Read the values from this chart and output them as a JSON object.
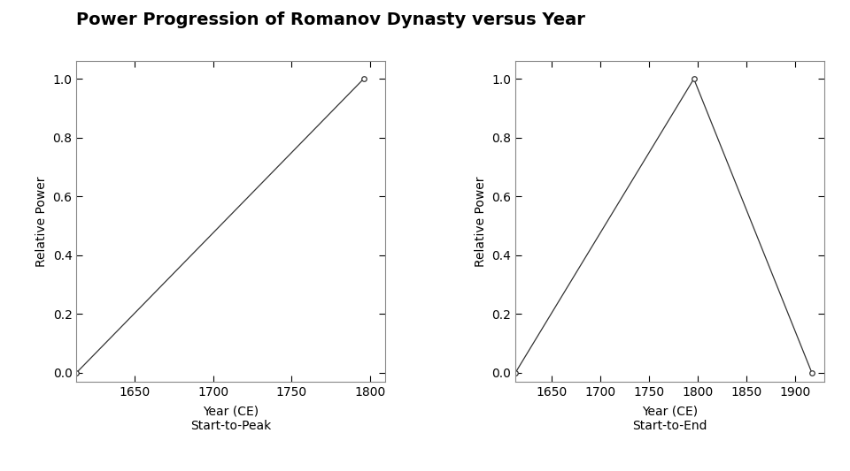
{
  "title": "Power Progression of Romanov Dynasty versus Year",
  "title_fontsize": 14,
  "title_fontweight": "bold",
  "left_plot": {
    "x": [
      1613,
      1796
    ],
    "y": [
      0.0,
      1.0
    ],
    "xlabel": "Year (CE)",
    "subtitle": "Start-to-Peak",
    "ylabel": "Relative Power",
    "xlim": [
      1613,
      1810
    ],
    "ylim": [
      -0.03,
      1.06
    ],
    "xticks": [
      1650,
      1700,
      1750,
      1800
    ],
    "yticks": [
      0.0,
      0.2,
      0.4,
      0.6,
      0.8,
      1.0
    ]
  },
  "right_plot": {
    "x": [
      1613,
      1796,
      1917
    ],
    "y": [
      0.0,
      1.0,
      0.0
    ],
    "xlabel": "Year (CE)",
    "subtitle": "Start-to-End",
    "ylabel": "Relative Power",
    "xlim": [
      1613,
      1930
    ],
    "ylim": [
      -0.03,
      1.06
    ],
    "xticks": [
      1650,
      1700,
      1750,
      1800,
      1850,
      1900
    ],
    "yticks": [
      0.0,
      0.2,
      0.4,
      0.6,
      0.8,
      1.0
    ]
  },
  "line_color": "#333333",
  "marker": "o",
  "marker_size": 4,
  "marker_facecolor": "white",
  "marker_edgecolor": "#333333",
  "background_color": "#ffffff",
  "panel_background": "#ffffff"
}
